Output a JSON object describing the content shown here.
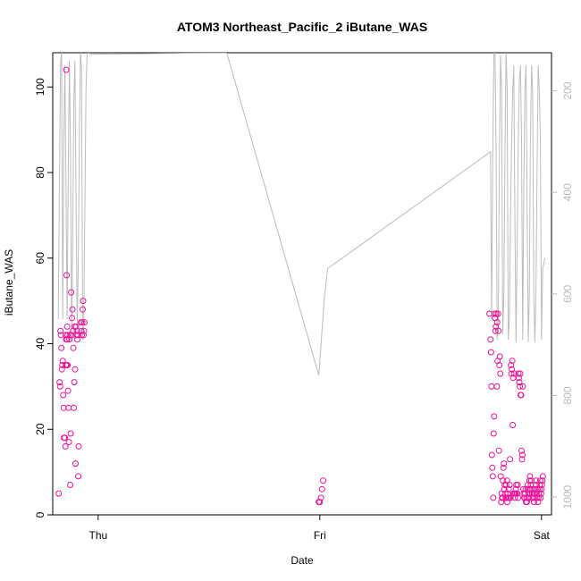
{
  "chart_data": {
    "type": "scatter",
    "title": "ATOM3 Northeast_Pacific_2 iButane_WAS",
    "xlabel": "Date",
    "ylabel": "iButane_WAS",
    "x_tick_labels": [
      "Thu",
      "Fri",
      "Sat"
    ],
    "xlim": [
      -0.205,
      2.045
    ],
    "ylim": [
      0,
      108
    ],
    "y_ticks": [
      0,
      20,
      40,
      60,
      80,
      100
    ],
    "y2_ticks": [
      200,
      400,
      600,
      800,
      1000
    ],
    "y2_lim_reversed": [
      125,
      1035
    ],
    "colors": {
      "points": "#ee1199",
      "pressure_line": "#bbbbbb",
      "right_axis": "#bbbbbb"
    },
    "series": [
      {
        "type": "scatter",
        "x_unit": "days since Thursday",
        "x": [
          -0.178,
          -0.174,
          -0.172,
          -0.17,
          -0.168,
          -0.166,
          -0.164,
          -0.162,
          -0.16,
          -0.158,
          -0.156,
          -0.154,
          -0.15,
          -0.148,
          -0.146,
          -0.146,
          -0.144,
          -0.144,
          -0.142,
          -0.142,
          -0.14,
          -0.14,
          -0.138,
          -0.138,
          -0.136,
          -0.134,
          -0.132,
          -0.13,
          -0.128,
          -0.126,
          -0.124,
          -0.122,
          -0.12,
          -0.118,
          -0.116,
          -0.114,
          -0.112,
          -0.11,
          -0.108,
          -0.106,
          -0.104,
          -0.102,
          -0.1,
          -0.098,
          -0.096,
          -0.094,
          -0.092,
          -0.09,
          -0.088,
          -0.078,
          -0.076,
          -0.074,
          -0.072,
          -0.07,
          -0.068,
          -0.066,
          -0.064,
          -0.062,
          0.995,
          1.0,
          1.005,
          1.01,
          1.015,
          1.765,
          1.77,
          1.772,
          1.774,
          1.776,
          1.778,
          1.78,
          1.782,
          1.784,
          1.786,
          1.788,
          1.79,
          1.792,
          1.794,
          1.796,
          1.798,
          1.8,
          1.802,
          1.804,
          1.806,
          1.808,
          1.81,
          1.812,
          1.814,
          1.816,
          1.818,
          1.82,
          1.822,
          1.824,
          1.826,
          1.828,
          1.83,
          1.832,
          1.834,
          1.836,
          1.838,
          1.84,
          1.842,
          1.844,
          1.846,
          1.848,
          1.85,
          1.852,
          1.854,
          1.856,
          1.858,
          1.86,
          1.862,
          1.864,
          1.866,
          1.868,
          1.87,
          1.872,
          1.874,
          1.876,
          1.878,
          1.88,
          1.882,
          1.884,
          1.886,
          1.888,
          1.89,
          1.892,
          1.894,
          1.896,
          1.898,
          1.9,
          1.902,
          1.904,
          1.906,
          1.908,
          1.91,
          1.912,
          1.914,
          1.916,
          1.918,
          1.92,
          1.922,
          1.924,
          1.926,
          1.928,
          1.93,
          1.932,
          1.934,
          1.936,
          1.938,
          1.94,
          1.942,
          1.944,
          1.946,
          1.948,
          1.95,
          1.952,
          1.954,
          1.956,
          1.958,
          1.96,
          1.962,
          1.964,
          1.966,
          1.968,
          1.97,
          1.972,
          1.974,
          1.976,
          1.978,
          1.98,
          1.982,
          1.984,
          1.986,
          1.988,
          1.99,
          1.992,
          1.994,
          1.996,
          1.998,
          2.0,
          2.002,
          2.004,
          2.006
        ],
        "y": [
          5,
          31,
          30,
          43,
          42,
          39,
          34,
          35,
          36,
          28,
          25,
          18,
          18,
          16,
          35,
          42,
          104,
          41,
          56,
          35,
          44,
          41,
          42,
          35,
          29,
          25,
          17,
          41,
          42,
          7,
          19,
          52,
          42,
          46,
          48,
          43,
          39,
          25,
          31,
          44,
          34,
          12,
          44,
          42,
          43,
          41,
          42,
          9,
          16,
          45,
          43,
          42,
          45,
          48,
          50,
          42,
          43,
          45,
          3,
          3,
          4,
          6,
          8,
          47,
          41,
          38,
          30,
          14,
          11,
          9,
          4,
          19,
          23,
          47,
          46,
          43,
          44,
          47,
          30,
          45,
          36,
          47,
          43,
          15,
          35,
          37,
          33,
          9,
          3,
          5,
          4,
          4,
          8,
          11,
          12,
          6,
          7,
          5,
          4,
          7,
          4,
          8,
          3,
          5,
          4,
          6,
          4,
          7,
          13,
          4,
          35,
          33,
          34,
          36,
          21,
          32,
          5,
          33,
          5,
          4,
          5,
          6,
          7,
          5,
          5,
          7,
          4,
          33,
          32,
          31,
          30,
          33,
          28,
          28,
          15,
          13,
          14,
          30,
          6,
          5,
          4,
          4,
          5,
          6,
          3,
          4,
          3,
          6,
          7,
          4,
          5,
          6,
          8,
          9,
          6,
          7,
          8,
          4,
          5,
          6,
          4,
          5,
          3,
          4,
          5,
          6,
          7,
          8,
          5,
          4,
          6,
          3,
          4,
          5,
          6,
          7,
          8,
          4,
          5,
          6,
          7,
          8,
          9
        ]
      },
      {
        "type": "line",
        "axis": "right",
        "x_unit": "days since Thursday",
        "x": [
          -0.18,
          -0.175,
          -0.17,
          -0.165,
          -0.16,
          -0.155,
          -0.15,
          -0.145,
          -0.14,
          -0.135,
          -0.13,
          -0.125,
          -0.12,
          -0.115,
          -0.11,
          -0.105,
          -0.1,
          -0.095,
          -0.09,
          -0.085,
          -0.08,
          -0.075,
          -0.07,
          -0.065,
          -0.06,
          -0.055,
          -0.05,
          -0.045,
          -0.04,
          -0.035,
          0.58,
          0.995,
          1.0,
          1.005,
          1.01,
          1.015,
          1.02,
          1.025,
          1.03,
          1.035,
          1.77,
          1.775,
          1.78,
          1.785,
          1.79,
          1.795,
          1.8,
          1.805,
          1.81,
          1.815,
          1.82,
          1.825,
          1.83,
          1.835,
          1.84,
          1.845,
          1.85,
          1.855,
          1.86,
          1.865,
          1.87,
          1.875,
          1.88,
          1.885,
          1.89,
          1.895,
          1.9,
          1.905,
          1.91,
          1.915,
          1.92,
          1.925,
          1.93,
          1.935,
          1.94,
          1.945,
          1.95,
          1.955,
          1.96,
          1.965,
          1.97,
          1.975,
          1.98,
          1.985,
          1.99,
          1.995,
          2.0,
          2.005,
          2.01,
          2.015
        ],
        "y": [
          650,
          400,
          150,
          120,
          650,
          300,
          150,
          400,
          650,
          350,
          140,
          300,
          680,
          500,
          220,
          140,
          400,
          660,
          550,
          300,
          120,
          160,
          690,
          650,
          420,
          200,
          130,
          120,
          125,
          128,
          125,
          760,
          735,
          700,
          670,
          640,
          610,
          590,
          570,
          550,
          320,
          650,
          330,
          130,
          120,
          310,
          690,
          640,
          330,
          130,
          200,
          680,
          600,
          330,
          120,
          200,
          690,
          650,
          450,
          300,
          200,
          150,
          460,
          695,
          500,
          300,
          180,
          150,
          300,
          690,
          400,
          200,
          150,
          420,
          695,
          600,
          300,
          150,
          200,
          600,
          695,
          600,
          350,
          150,
          200,
          300,
          690,
          550,
          540,
          530
        ]
      }
    ]
  }
}
